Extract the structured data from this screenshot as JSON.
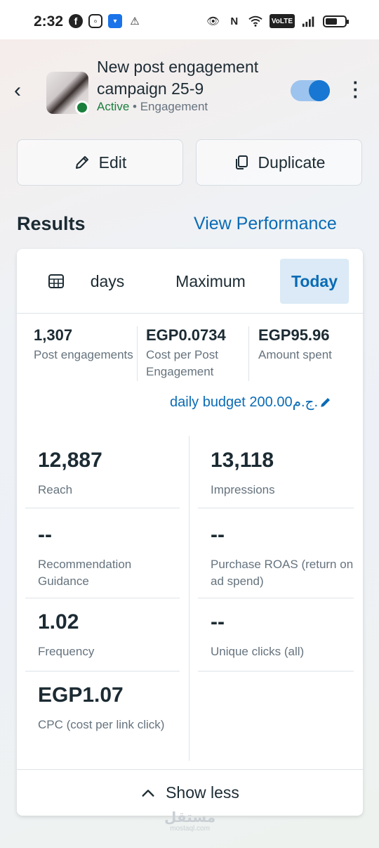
{
  "status_bar": {
    "time": "2:32",
    "volte": "VoLTE"
  },
  "header": {
    "title": "New post engagement campaign 25-9",
    "status": "Active",
    "separator": "•",
    "objective": "Engagement",
    "toggle_on": true
  },
  "actions": {
    "edit_label": "Edit",
    "duplicate_label": "Duplicate"
  },
  "results": {
    "title": "Results",
    "view_performance_label": "View Performance"
  },
  "tabs": [
    {
      "label": "days",
      "active": false
    },
    {
      "label": "Maximum",
      "active": false
    },
    {
      "label": "Today",
      "active": true
    }
  ],
  "kpis": [
    {
      "value": "1,307",
      "label": "Post engagements"
    },
    {
      "value": "EGP0.0734",
      "label": "Cost per Post Engagement"
    },
    {
      "value": "EGP95.96",
      "label": "Amount spent"
    }
  ],
  "budget": {
    "label": "daily budget 200.00ج.م."
  },
  "metrics": [
    {
      "value": "12,887",
      "label": "Reach"
    },
    {
      "value": "13,118",
      "label": "Impressions"
    },
    {
      "value": "--",
      "label": "Recommendation Guidance"
    },
    {
      "value": "--",
      "label": "Purchase ROAS (return on ad spend)"
    },
    {
      "value": "1.02",
      "label": "Frequency"
    },
    {
      "value": "--",
      "label": "Unique clicks (all)"
    },
    {
      "value": "EGP1.07",
      "label": "CPC (cost per link click)"
    }
  ],
  "show_less_label": "Show less",
  "watermark": {
    "main": "مستقل",
    "sub": "mostaql.com"
  },
  "colors": {
    "accent": "#0a6bb5",
    "active_green": "#1a7f3c",
    "toggle_track": "#9cc4ee",
    "toggle_knob": "#1877d2"
  }
}
